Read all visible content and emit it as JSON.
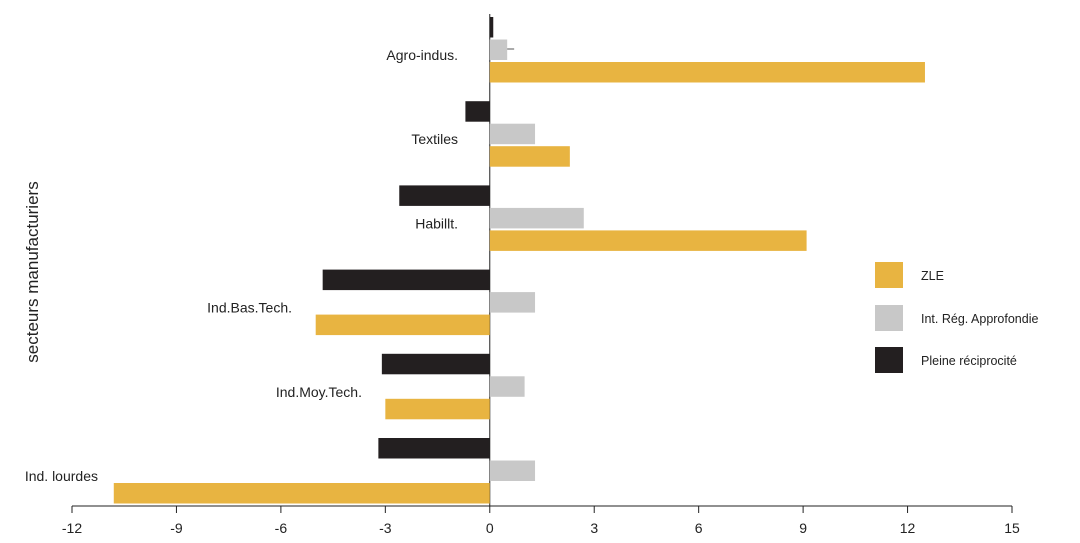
{
  "chart_data": {
    "type": "bar",
    "orientation": "horizontal",
    "ylabel": "secteurs manufacturiers",
    "xlim": [
      -12,
      15
    ],
    "xticks": [
      -12,
      -9,
      -6,
      -3,
      0,
      3,
      6,
      9,
      12,
      15
    ],
    "categories": [
      "Agro-indus.",
      "Textiles",
      "Habillt.",
      "Ind.Bas.Tech.",
      "Ind.Moy.Tech.",
      "Ind. lourdes"
    ],
    "series": [
      {
        "name": "ZLE",
        "color": "#E8B441",
        "values": [
          12.5,
          2.3,
          9.1,
          -5.0,
          -3.0,
          -10.8
        ]
      },
      {
        "name": "Int. Rég. Approfondie",
        "color": "#C8C8C8",
        "values": [
          0.5,
          1.3,
          2.7,
          1.3,
          1.0,
          1.3
        ]
      },
      {
        "name": "Pleine réciprocité",
        "color": "#231F20",
        "values": [
          0.1,
          -0.7,
          -2.6,
          -4.8,
          -3.1,
          -3.2
        ]
      }
    ],
    "legend_position": "right",
    "grid": false
  }
}
